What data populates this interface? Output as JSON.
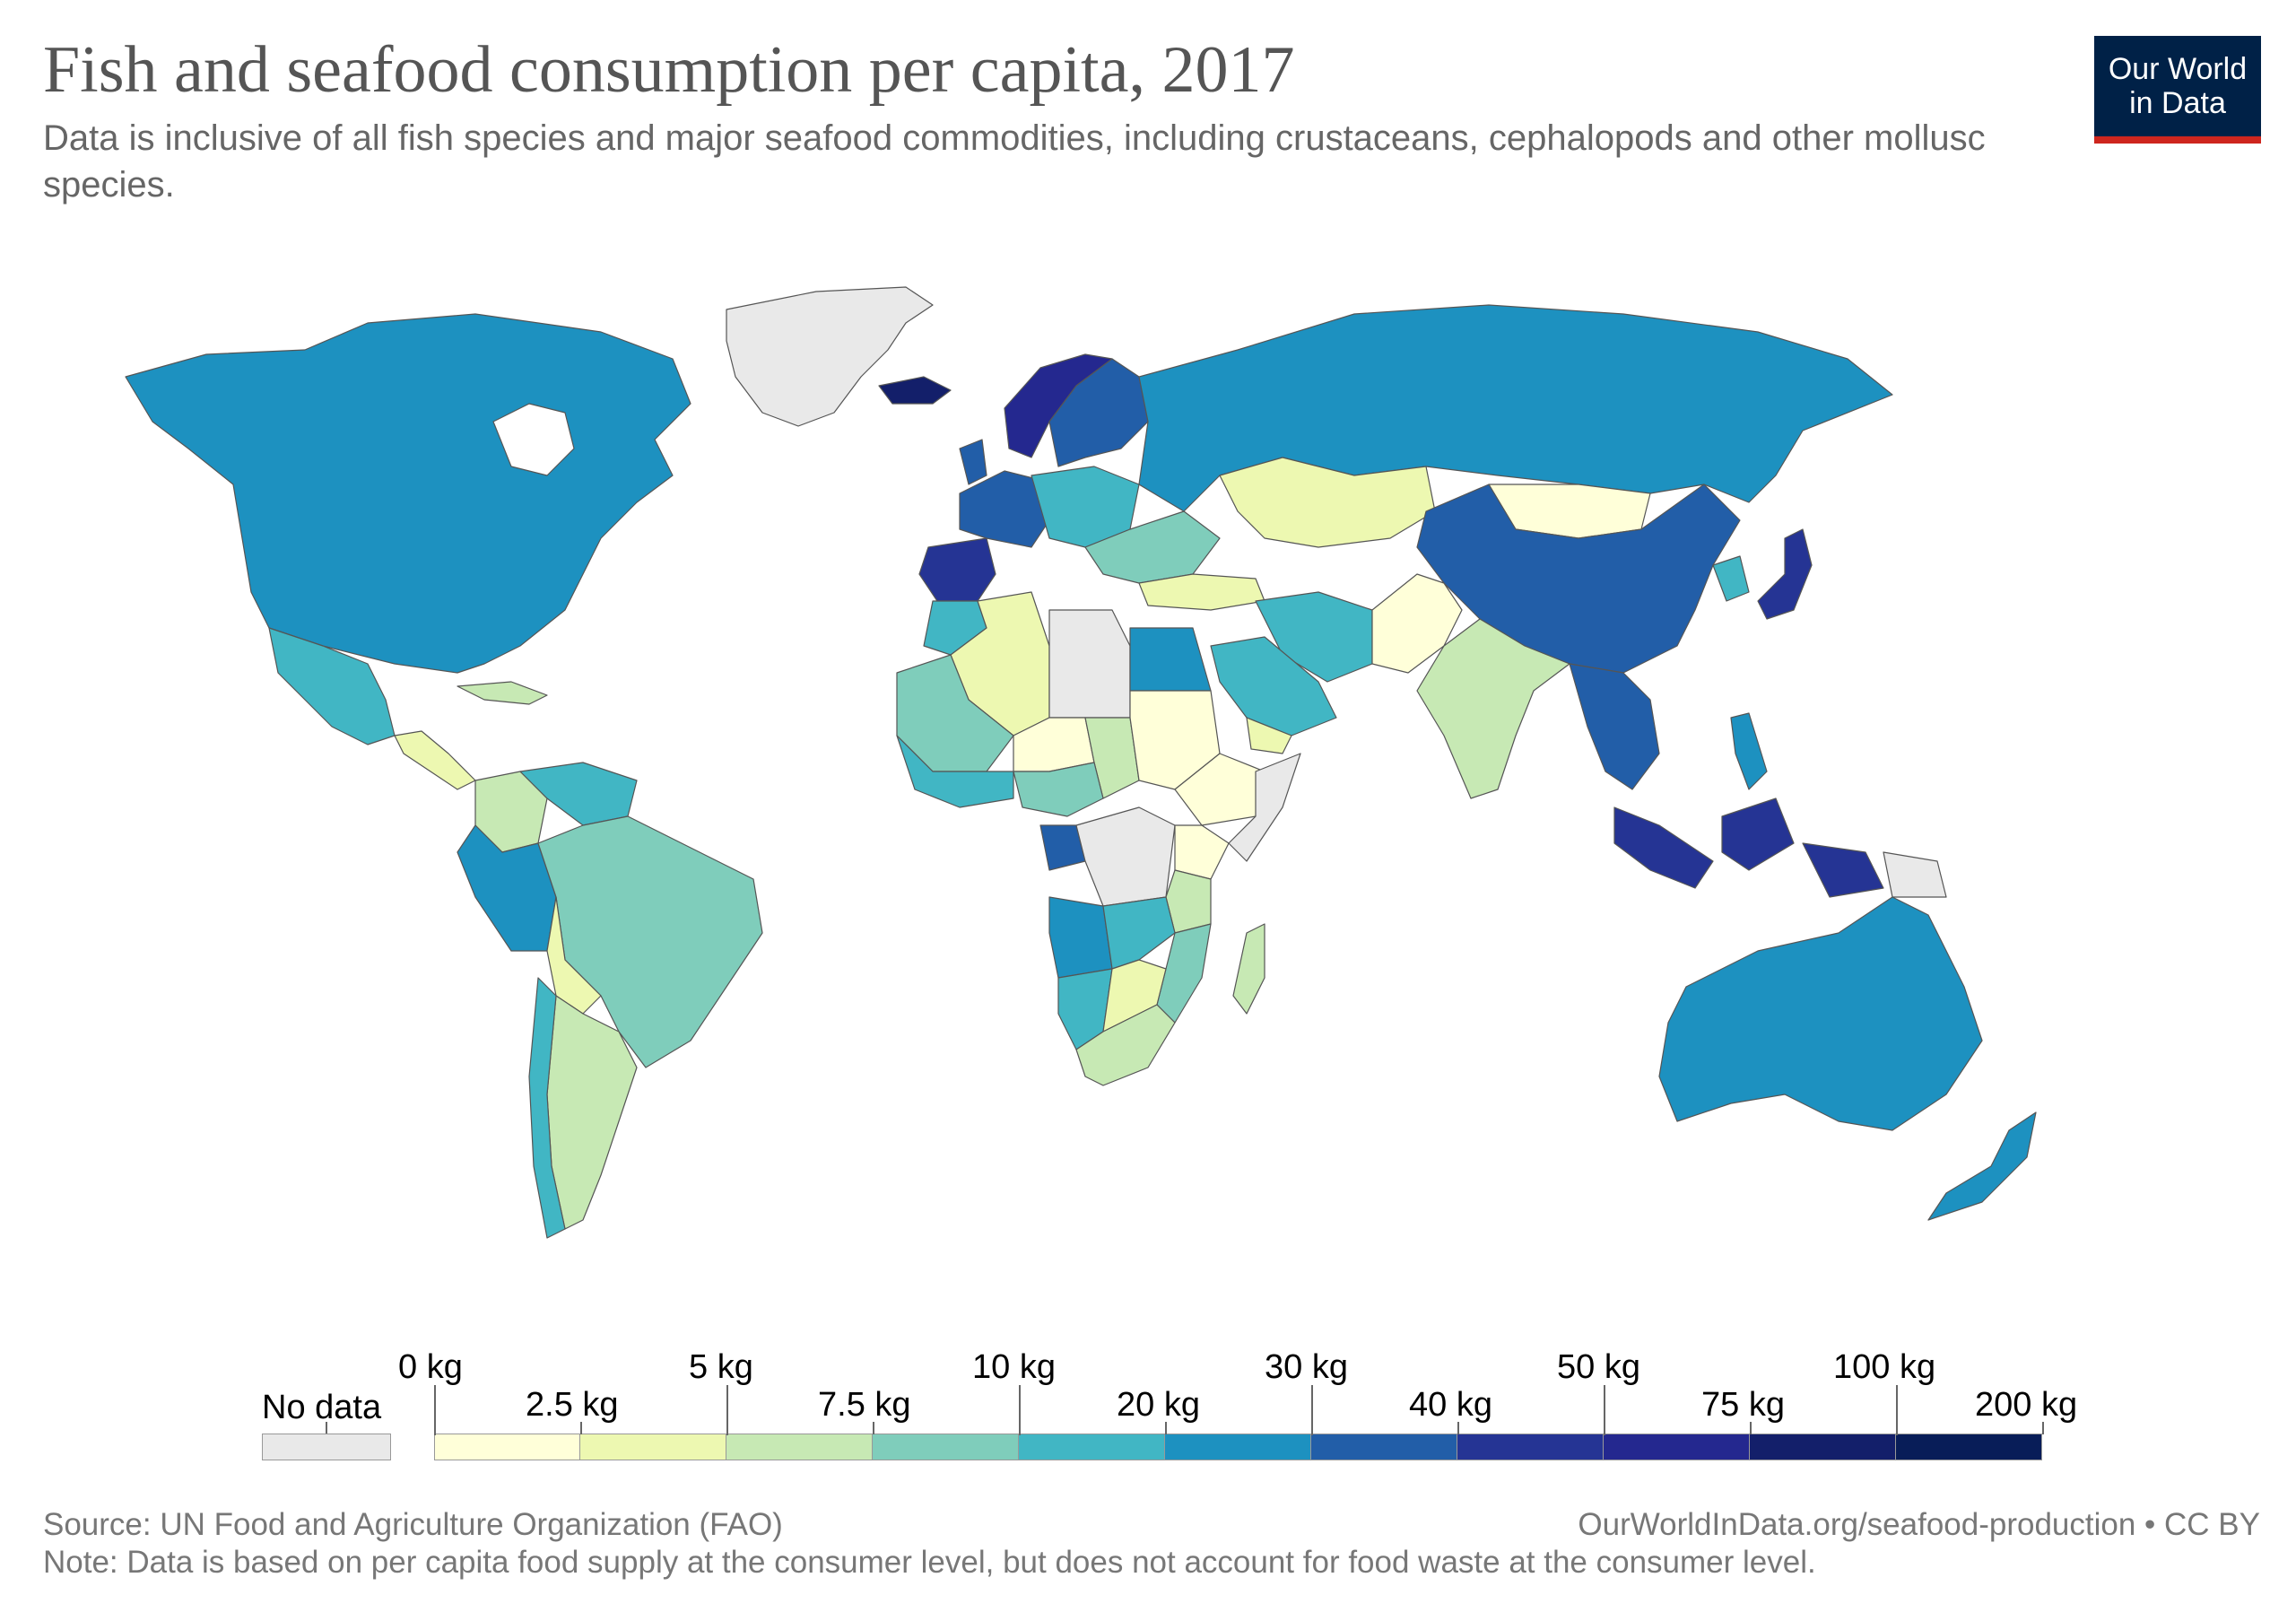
{
  "header": {
    "title": "Fish and seafood consumption per capita, 2017",
    "subtitle": "Data is inclusive of all fish species and major seafood commodities, including crustaceans, cephalopods and other mollusc species."
  },
  "logo": {
    "line1": "Our World",
    "line2": "in Data",
    "bg_color": "#002147",
    "accent_color": "#ce261e"
  },
  "legend": {
    "no_data_label": "No data",
    "upper_ticks": [
      "0 kg",
      "5 kg",
      "10 kg",
      "30 kg",
      "50 kg",
      "100 kg"
    ],
    "lower_ticks": [
      "2.5 kg",
      "7.5 kg",
      "20 kg",
      "40 kg",
      "75 kg",
      "200 kg"
    ],
    "no_data_color": "#e9e9e9",
    "bins": [
      {
        "range": "0–2.5 kg",
        "color": "#ffffd9"
      },
      {
        "range": "2.5–5 kg",
        "color": "#edf8b1"
      },
      {
        "range": "5–7.5 kg",
        "color": "#c7e9b4"
      },
      {
        "range": "7.5–10 kg",
        "color": "#7fcdbb"
      },
      {
        "range": "10–20 kg",
        "color": "#41b6c4"
      },
      {
        "range": "20–30 kg",
        "color": "#1d91c0"
      },
      {
        "range": "30–40 kg",
        "color": "#225ea8"
      },
      {
        "range": "40–50 kg",
        "color": "#253494"
      },
      {
        "range": "50–75 kg",
        "color": "#24288f"
      },
      {
        "range": "75–100 kg",
        "color": "#131f6a"
      },
      {
        "range": "100–200 kg",
        "color": "#081d58"
      }
    ]
  },
  "map_regions": [
    {
      "name": "Greenland",
      "color": "#e9e9e9"
    },
    {
      "name": "North America",
      "color": "#1d91c0"
    },
    {
      "name": "Mexico",
      "color": "#41b6c4"
    },
    {
      "name": "Central America",
      "color": "#edf8b1"
    },
    {
      "name": "Caribbean",
      "color": "#c7e9b4"
    },
    {
      "name": "Brazil",
      "color": "#7fcdbb"
    },
    {
      "name": "Peru",
      "color": "#1d91c0"
    },
    {
      "name": "Colombia",
      "color": "#c7e9b4"
    },
    {
      "name": "Venezuela",
      "color": "#41b6c4"
    },
    {
      "name": "Bolivia",
      "color": "#edf8b1"
    },
    {
      "name": "Argentina",
      "color": "#c7e9b4"
    },
    {
      "name": "Chile",
      "color": "#41b6c4"
    },
    {
      "name": "Iceland",
      "color": "#131f6a"
    },
    {
      "name": "Norway",
      "color": "#24288f"
    },
    {
      "name": "Sweden and Finland",
      "color": "#225ea8"
    },
    {
      "name": "Western Europe",
      "color": "#225ea8"
    },
    {
      "name": "Iberia",
      "color": "#253494"
    },
    {
      "name": "Central Europe",
      "color": "#41b6c4"
    },
    {
      "name": "Eastern Europe",
      "color": "#7fcdbb"
    },
    {
      "name": "Russia",
      "color": "#1d91c0"
    },
    {
      "name": "Kazakhstan",
      "color": "#edf8b1"
    },
    {
      "name": "Mongolia",
      "color": "#ffffd9"
    },
    {
      "name": "China",
      "color": "#225ea8"
    },
    {
      "name": "Japan",
      "color": "#253494"
    },
    {
      "name": "Korea",
      "color": "#41b6c4"
    },
    {
      "name": "India",
      "color": "#c7e9b4"
    },
    {
      "name": "Pakistan and Afghanistan",
      "color": "#ffffd9"
    },
    {
      "name": "Iran",
      "color": "#41b6c4"
    },
    {
      "name": "Saudi Arabia",
      "color": "#41b6c4"
    },
    {
      "name": "Yemen",
      "color": "#edf8b1"
    },
    {
      "name": "Turkey",
      "color": "#edf8b1"
    },
    {
      "name": "Southeast Asia",
      "color": "#225ea8"
    },
    {
      "name": "Indonesia",
      "color": "#253494"
    },
    {
      "name": "Philippines",
      "color": "#1d91c0"
    },
    {
      "name": "Papua New Guinea",
      "color": "#e9e9e9"
    },
    {
      "name": "Australia",
      "color": "#1d91c0"
    },
    {
      "name": "New Zealand",
      "color": "#1d91c0"
    },
    {
      "name": "Algeria",
      "color": "#edf8b1"
    },
    {
      "name": "Libya",
      "color": "#e9e9e9"
    },
    {
      "name": "Egypt",
      "color": "#1d91c0"
    },
    {
      "name": "Morocco",
      "color": "#41b6c4"
    },
    {
      "name": "Mali and Mauritania",
      "color": "#7fcdbb"
    },
    {
      "name": "Niger",
      "color": "#ffffd9"
    },
    {
      "name": "Chad",
      "color": "#c7e9b4"
    },
    {
      "name": "Sudan",
      "color": "#ffffd9"
    },
    {
      "name": "Ethiopia",
      "color": "#ffffd9"
    },
    {
      "name": "Somalia",
      "color": "#e9e9e9"
    },
    {
      "name": "West Africa coast",
      "color": "#41b6c4"
    },
    {
      "name": "Nigeria",
      "color": "#7fcdbb"
    },
    {
      "name": "Gabon and Congo",
      "color": "#225ea8"
    },
    {
      "name": "DR Congo",
      "color": "#e9e9e9"
    },
    {
      "name": "Angola",
      "color": "#1d91c0"
    },
    {
      "name": "Namibia",
      "color": "#41b6c4"
    },
    {
      "name": "Botswana",
      "color": "#edf8b1"
    },
    {
      "name": "South Africa",
      "color": "#c7e9b4"
    },
    {
      "name": "Tanzania",
      "color": "#c7e9b4"
    },
    {
      "name": "Kenya",
      "color": "#ffffd9"
    },
    {
      "name": "Zambia",
      "color": "#41b6c4"
    },
    {
      "name": "Mozambique",
      "color": "#7fcdbb"
    },
    {
      "name": "Madagascar",
      "color": "#c7e9b4"
    }
  ],
  "footer": {
    "source": "Source: UN Food and Agriculture Organization (FAO)",
    "url": "OurWorldInData.org/seafood-production • CC BY",
    "note": "Note: Data is based on per capita food supply at the consumer level, but does not account for food waste at the consumer level."
  }
}
